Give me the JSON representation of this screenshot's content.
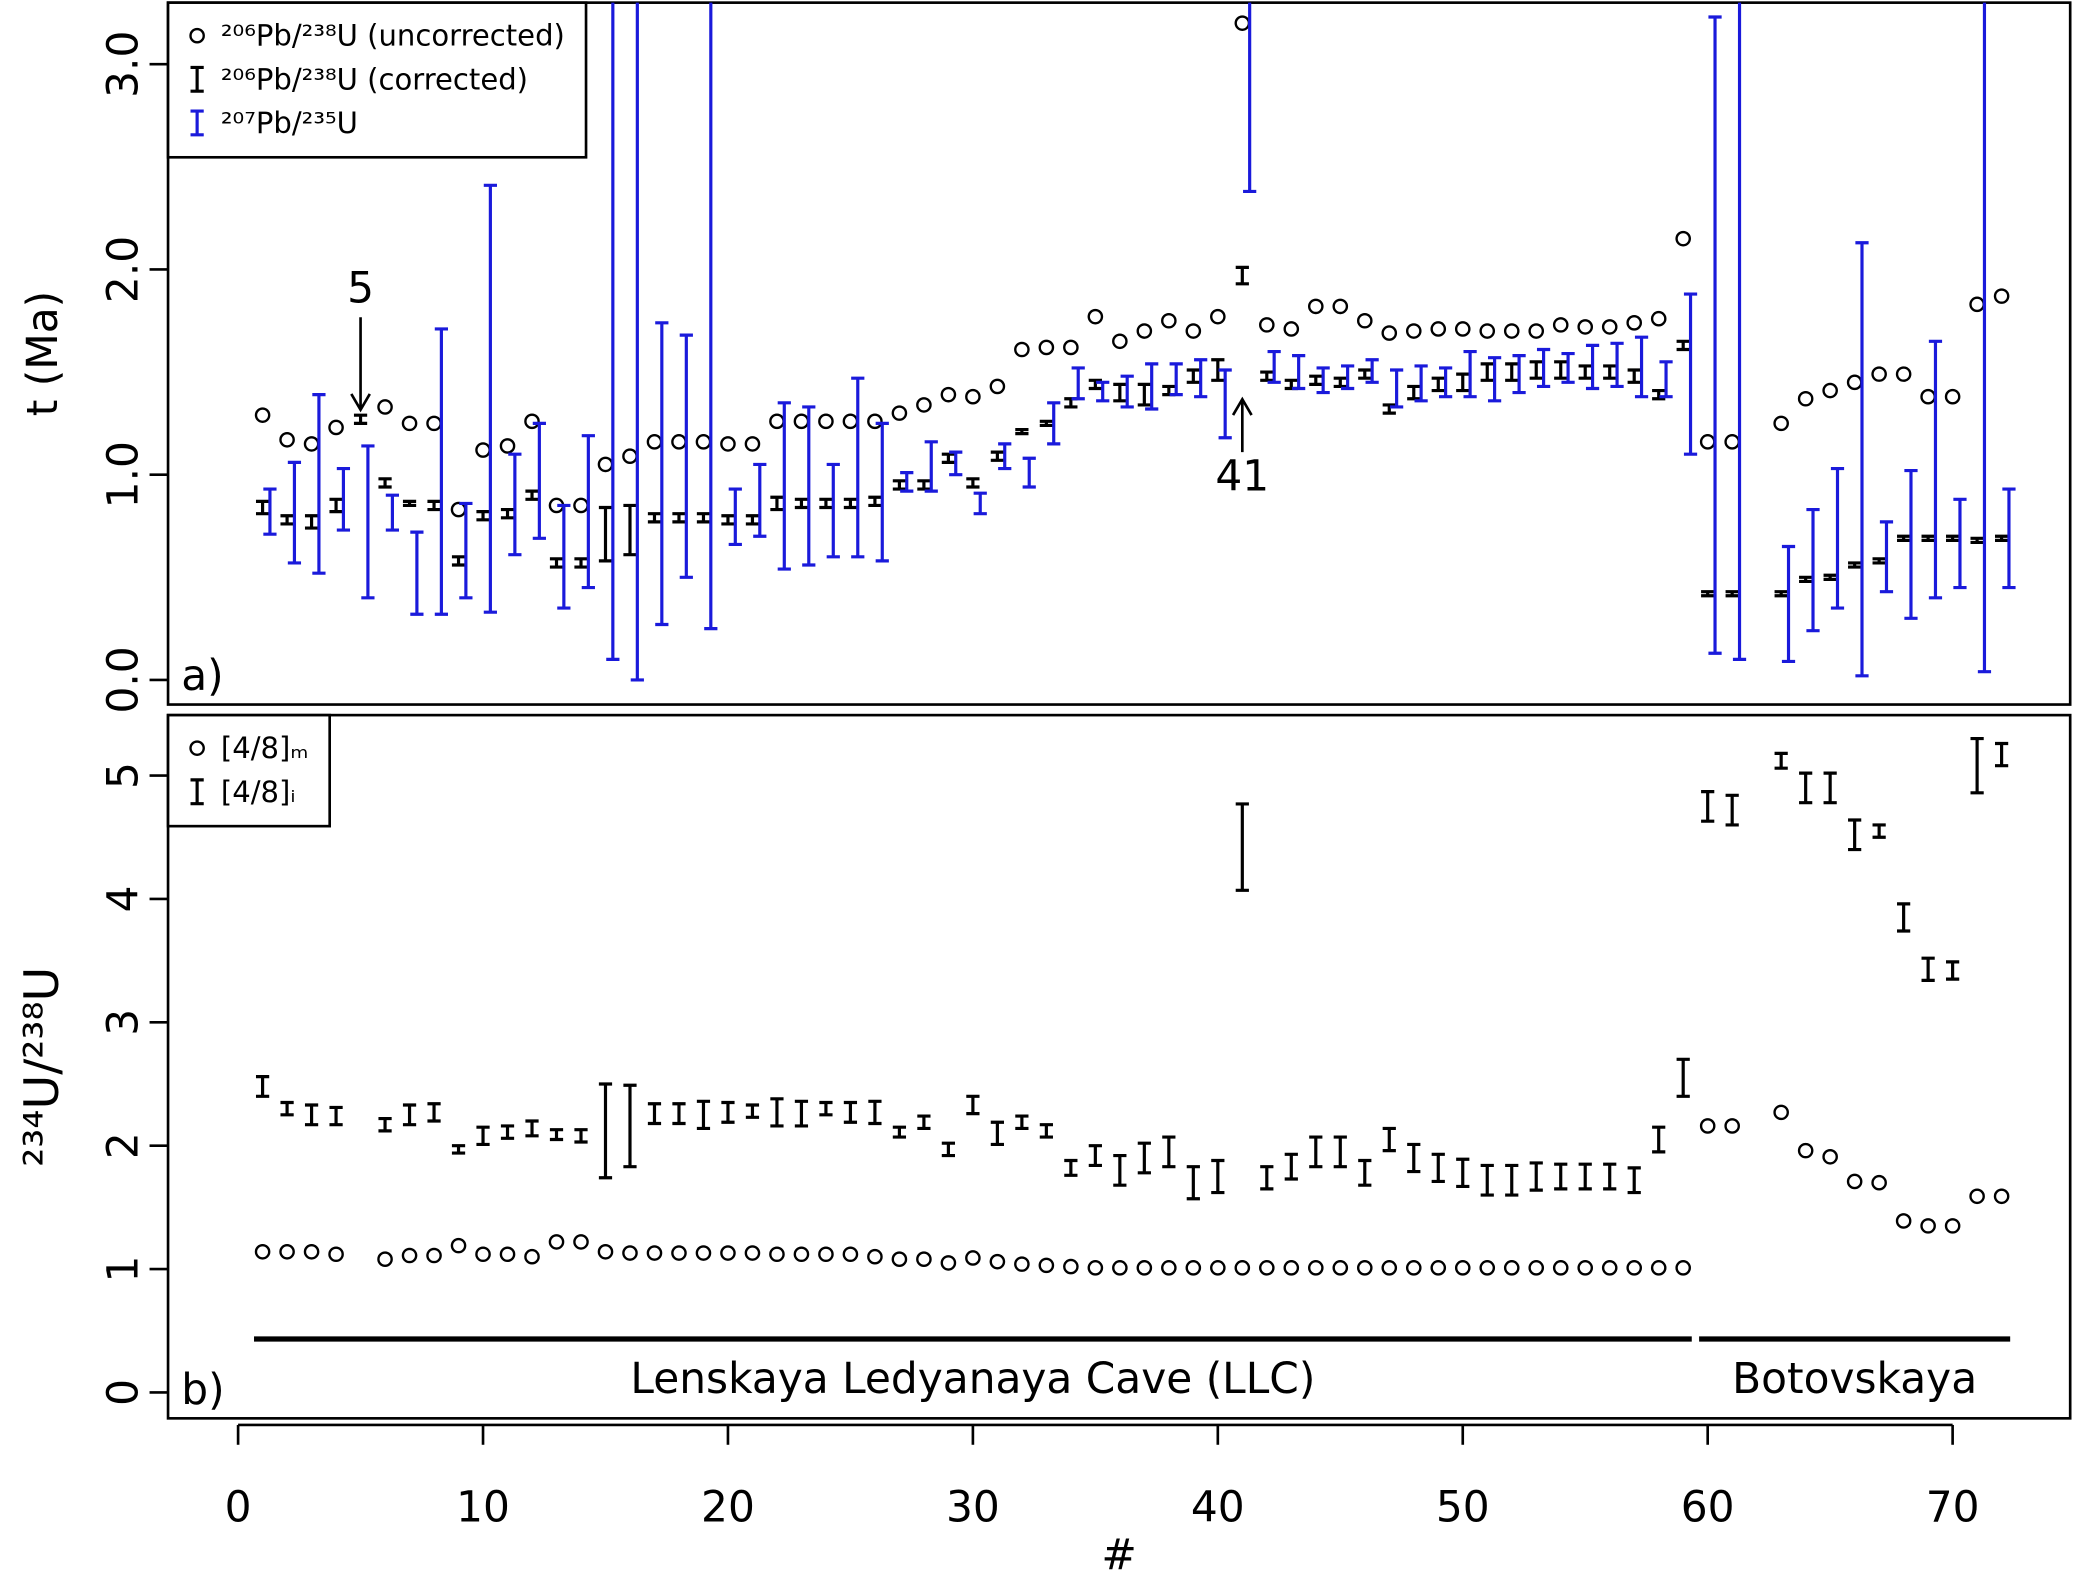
{
  "chart_data": [
    {
      "type": "scatter",
      "ylabel": "t (Ma)",
      "panel_label": "a)",
      "legend": "top-left",
      "xlim": [
        -2.86,
        74.8
      ],
      "ylim": [
        -0.12,
        3.3
      ],
      "yticks": [
        {
          "value": 0,
          "label": "0.0"
        },
        {
          "value": 1,
          "label": "1.0"
        },
        {
          "value": 2,
          "label": "2.0"
        },
        {
          "value": 3,
          "label": "3.0"
        }
      ],
      "x": [
        1,
        2,
        3,
        4,
        5,
        6,
        7,
        8,
        9,
        10,
        11,
        12,
        13,
        14,
        15,
        16,
        17,
        18,
        19,
        20,
        21,
        22,
        23,
        24,
        25,
        26,
        27,
        28,
        29,
        30,
        31,
        32,
        33,
        34,
        35,
        36,
        37,
        38,
        39,
        40,
        41,
        42,
        43,
        44,
        45,
        46,
        47,
        48,
        49,
        50,
        51,
        52,
        53,
        54,
        55,
        56,
        57,
        58,
        59,
        60,
        61,
        62,
        63,
        64,
        65,
        66,
        67,
        68,
        69,
        70,
        71,
        72
      ],
      "series": [
        {
          "name": "²⁰⁶Pb/²³⁸U (uncorrected)",
          "color": "#000000",
          "marker": "circle",
          "values": [
            1.29,
            1.17,
            1.15,
            1.23,
            null,
            1.33,
            1.25,
            1.25,
            0.83,
            1.12,
            1.14,
            1.26,
            0.85,
            0.85,
            1.05,
            1.09,
            1.16,
            1.16,
            1.16,
            1.15,
            1.15,
            1.26,
            1.26,
            1.26,
            1.26,
            1.26,
            1.3,
            1.34,
            1.39,
            1.38,
            1.43,
            1.61,
            1.62,
            1.62,
            1.77,
            1.65,
            1.7,
            1.75,
            1.7,
            1.77,
            3.2,
            1.73,
            1.71,
            1.82,
            1.82,
            1.75,
            1.69,
            1.7,
            1.71,
            1.71,
            1.7,
            1.7,
            1.7,
            1.73,
            1.72,
            1.72,
            1.74,
            1.76,
            2.15,
            1.16,
            1.16,
            null,
            1.25,
            1.37,
            1.41,
            1.45,
            1.49,
            1.49,
            1.38,
            1.38,
            1.83,
            1.87
          ]
        },
        {
          "name": "²⁰⁶Pb/²³⁸U (corrected)",
          "color": "#000000",
          "marker": "errorbar",
          "values": [
            0.84,
            0.78,
            0.77,
            0.85,
            1.27,
            0.96,
            0.86,
            0.85,
            0.58,
            0.8,
            0.81,
            0.9,
            0.57,
            0.57,
            0.71,
            0.73,
            0.79,
            0.79,
            0.79,
            0.78,
            0.78,
            0.86,
            0.86,
            0.86,
            0.86,
            0.87,
            0.95,
            0.95,
            1.08,
            0.96,
            1.09,
            1.21,
            1.25,
            1.35,
            1.44,
            1.4,
            1.39,
            1.41,
            1.48,
            1.51,
            1.97,
            1.48,
            1.44,
            1.46,
            1.45,
            1.49,
            1.32,
            1.4,
            1.44,
            1.45,
            1.5,
            1.5,
            1.51,
            1.51,
            1.5,
            1.5,
            1.48,
            1.39,
            1.63,
            0.42,
            0.42,
            null,
            0.42,
            0.49,
            0.5,
            0.56,
            0.58,
            0.69,
            0.69,
            0.69,
            0.68,
            0.69
          ],
          "errors": [
            0.03,
            0.02,
            0.03,
            0.03,
            0.02,
            0.02,
            0.01,
            0.02,
            0.02,
            0.02,
            0.02,
            0.02,
            0.02,
            0.02,
            0.13,
            0.12,
            0.02,
            0.02,
            0.02,
            0.02,
            0.02,
            0.03,
            0.02,
            0.02,
            0.02,
            0.02,
            0.02,
            0.02,
            0.02,
            0.02,
            0.02,
            0.01,
            0.01,
            0.02,
            0.02,
            0.04,
            0.05,
            0.02,
            0.03,
            0.05,
            0.04,
            0.02,
            0.02,
            0.02,
            0.02,
            0.02,
            0.02,
            0.03,
            0.03,
            0.04,
            0.04,
            0.04,
            0.04,
            0.04,
            0.03,
            0.03,
            0.03,
            0.02,
            0.02,
            0.01,
            0.01,
            null,
            0.01,
            0.01,
            0.01,
            0.01,
            0.01,
            0.01,
            0.01,
            0.01,
            0.01,
            0.01
          ]
        },
        {
          "name": "²⁰⁷Pb/²³⁵U",
          "color": "#1a1adb",
          "marker": "errorbar",
          "values": [
            0.82,
            0.815,
            0.955,
            0.88,
            0.77,
            0.815,
            0.52,
            1.015,
            0.63,
            1.37,
            0.855,
            0.97,
            0.6,
            0.82,
            1.95,
            2.0,
            1.005,
            1.09,
            1.925,
            0.795,
            0.875,
            0.945,
            0.945,
            0.825,
            1.035,
            0.915,
            0.965,
            1.04,
            1.055,
            0.86,
            1.09,
            1.01,
            1.25,
            1.445,
            1.405,
            1.405,
            1.43,
            1.465,
            1.47,
            1.345,
            3.19,
            1.525,
            1.5,
            1.46,
            1.475,
            1.505,
            1.42,
            1.445,
            1.45,
            1.49,
            1.465,
            1.49,
            1.52,
            1.52,
            1.525,
            1.535,
            1.525,
            1.465,
            1.49,
            1.68,
            2.0,
            null,
            0.37,
            0.535,
            0.69,
            1.075,
            0.6,
            0.66,
            1.025,
            0.665,
            1.97,
            0.69
          ],
          "errors": [
            0.11,
            0.245,
            0.435,
            0.15,
            0.37,
            0.085,
            0.2,
            0.695,
            0.23,
            1.04,
            0.245,
            0.28,
            0.25,
            0.37,
            1.85,
            2.0,
            0.735,
            0.59,
            1.675,
            0.135,
            0.175,
            0.405,
            0.385,
            0.225,
            0.435,
            0.335,
            0.045,
            0.12,
            0.055,
            0.05,
            0.06,
            0.07,
            0.1,
            0.075,
            0.045,
            0.075,
            0.11,
            0.075,
            0.09,
            0.165,
            0.81,
            0.075,
            0.08,
            0.06,
            0.055,
            0.055,
            0.09,
            0.085,
            0.07,
            0.11,
            0.105,
            0.09,
            0.09,
            0.07,
            0.105,
            0.105,
            0.145,
            0.085,
            0.39,
            1.55,
            1.9,
            null,
            0.28,
            0.295,
            0.34,
            1.055,
            0.17,
            0.36,
            0.625,
            0.215,
            1.93,
            0.24
          ]
        }
      ],
      "annotations": [
        {
          "label": "5",
          "x": 5,
          "position": "above"
        },
        {
          "label": "41",
          "x": 41,
          "position": "below"
        }
      ]
    },
    {
      "type": "scatter",
      "ylabel": "²³⁴U/²³⁸U",
      "xlabel": "#",
      "panel_label": "b)",
      "legend": "top-left",
      "xlim": [
        -2.86,
        74.8
      ],
      "ylim": [
        -0.21,
        5.49
      ],
      "xticks": [
        0,
        10,
        20,
        30,
        40,
        50,
        60,
        70
      ],
      "yticks": [
        0,
        1,
        2,
        3,
        4,
        5
      ],
      "x": [
        1,
        2,
        3,
        4,
        5,
        6,
        7,
        8,
        9,
        10,
        11,
        12,
        13,
        14,
        15,
        16,
        17,
        18,
        19,
        20,
        21,
        22,
        23,
        24,
        25,
        26,
        27,
        28,
        29,
        30,
        31,
        32,
        33,
        34,
        35,
        36,
        37,
        38,
        39,
        40,
        41,
        42,
        43,
        44,
        45,
        46,
        47,
        48,
        49,
        50,
        51,
        52,
        53,
        54,
        55,
        56,
        57,
        58,
        59,
        60,
        61,
        62,
        63,
        64,
        65,
        66,
        67,
        68,
        69,
        70,
        71,
        72
      ],
      "series": [
        {
          "name": "[4/8]ₘ",
          "color": "#000000",
          "marker": "circle",
          "values": [
            1.14,
            1.14,
            1.14,
            1.12,
            null,
            1.08,
            1.11,
            1.11,
            1.19,
            1.12,
            1.12,
            1.1,
            1.22,
            1.22,
            1.14,
            1.13,
            1.13,
            1.13,
            1.13,
            1.13,
            1.13,
            1.12,
            1.12,
            1.12,
            1.12,
            1.1,
            1.08,
            1.08,
            1.05,
            1.09,
            1.06,
            1.04,
            1.03,
            1.02,
            1.01,
            1.01,
            1.01,
            1.01,
            1.01,
            1.01,
            1.01,
            1.01,
            1.01,
            1.01,
            1.01,
            1.01,
            1.01,
            1.01,
            1.01,
            1.01,
            1.01,
            1.01,
            1.01,
            1.01,
            1.01,
            1.01,
            1.01,
            1.01,
            1.01,
            2.16,
            2.16,
            null,
            2.27,
            1.96,
            1.91,
            1.71,
            1.7,
            1.39,
            1.35,
            1.35,
            1.59,
            1.59
          ]
        },
        {
          "name": "[4/8]ᵢ",
          "color": "#000000",
          "marker": "errorbar",
          "values": [
            2.48,
            2.3,
            2.25,
            2.24,
            null,
            2.17,
            2.25,
            2.27,
            1.97,
            2.08,
            2.11,
            2.14,
            2.09,
            2.08,
            2.12,
            2.16,
            2.26,
            2.26,
            2.25,
            2.27,
            2.28,
            2.27,
            2.26,
            2.3,
            2.27,
            2.27,
            2.11,
            2.19,
            1.97,
            2.33,
            2.1,
            2.19,
            2.12,
            1.82,
            1.92,
            1.8,
            1.9,
            1.95,
            1.7,
            1.75,
            4.42,
            1.74,
            1.83,
            1.95,
            1.95,
            1.78,
            2.05,
            1.9,
            1.82,
            1.78,
            1.72,
            1.72,
            1.75,
            1.75,
            1.75,
            1.75,
            1.72,
            2.05,
            2.55,
            4.75,
            4.72,
            null,
            5.12,
            4.9,
            4.9,
            4.52,
            4.55,
            3.85,
            3.43,
            3.42,
            5.08,
            5.17
          ],
          "errors": [
            0.08,
            0.05,
            0.08,
            0.07,
            null,
            0.05,
            0.08,
            0.07,
            0.03,
            0.07,
            0.05,
            0.06,
            0.04,
            0.05,
            0.38,
            0.33,
            0.08,
            0.08,
            0.11,
            0.08,
            0.05,
            0.11,
            0.1,
            0.05,
            0.08,
            0.09,
            0.04,
            0.05,
            0.05,
            0.07,
            0.09,
            0.05,
            0.05,
            0.06,
            0.08,
            0.12,
            0.12,
            0.12,
            0.13,
            0.13,
            0.35,
            0.09,
            0.1,
            0.12,
            0.12,
            0.1,
            0.09,
            0.11,
            0.11,
            0.11,
            0.12,
            0.12,
            0.11,
            0.1,
            0.1,
            0.1,
            0.1,
            0.1,
            0.15,
            0.12,
            0.12,
            null,
            0.06,
            0.12,
            0.12,
            0.12,
            0.05,
            0.11,
            0.09,
            0.07,
            0.22,
            0.09
          ]
        }
      ],
      "groups": [
        {
          "label": "Lenskaya Ledyanaya Cave (LLC)",
          "from": 1,
          "to": 59
        },
        {
          "label": "Botovskaya",
          "from": 60,
          "to": 72
        }
      ]
    }
  ]
}
